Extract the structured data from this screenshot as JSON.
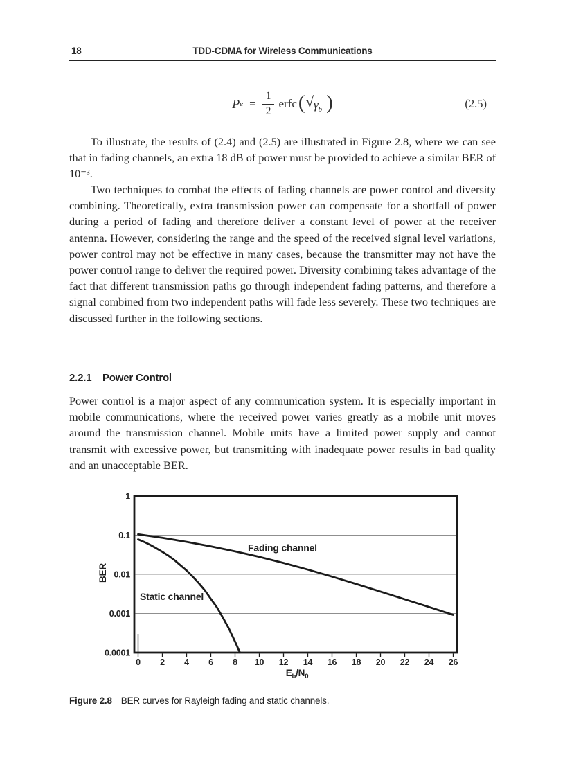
{
  "header": {
    "page_number": "18",
    "running_title": "TDD-CDMA for Wireless Communications"
  },
  "equation": {
    "lhs_base": "P",
    "lhs_sub": "e",
    "relation": "=",
    "numerator": "1",
    "denominator": "2",
    "function": "erfc",
    "open_paren": "(",
    "radical": "√",
    "radicand_base": "γ",
    "radicand_sub": "b",
    "close_paren": ")",
    "number": "(2.5)"
  },
  "paragraphs": {
    "p1": "To illustrate, the results of (2.4) and (2.5) are illustrated in Figure 2.8, where we can see that in fading channels, an extra 18 dB of power must be provided to achieve a similar BER of 10⁻³.",
    "p2": "Two techniques to combat the effects of fading channels are power control and diversity combining. Theoretically, extra transmission power can compensate for a shortfall of power during a period of fading and therefore deliver a constant level of power at the receiver antenna. However, considering the range and the speed of the received signal level variations, power control may not be effective in many cases, because the transmitter may not have the power control range to deliver the required power. Diversity combining takes advantage of the fact that different transmission paths go through independent fading patterns, and therefore a signal combined from two independent paths will fade less severely. These two techniques are discussed further in the following sections.",
    "p3": "Power control is a major aspect of any communication system. It is especially important in mobile communications, where the received power varies greatly as a mobile unit moves around the transmission channel. Mobile units have a limited power supply and cannot transmit with excessive power, but transmitting with inadequate power results in bad quality and an unacceptable BER."
  },
  "section_heading": {
    "number": "2.2.1",
    "title": "Power Control"
  },
  "figure": {
    "caption_label": "Figure 2.8",
    "caption_text": "BER curves for Rayleigh fading and static channels."
  },
  "chart_data": {
    "type": "line",
    "title": "",
    "xlabel": "Eb/N0",
    "xlabel_parts": {
      "base1": "E",
      "sub1": "b",
      "base2": "/N",
      "sub2": "0"
    },
    "ylabel": "BER",
    "xlim": [
      0,
      26.6
    ],
    "ylim": [
      0.0001,
      1
    ],
    "y_scale": "log",
    "grid": "horizontal",
    "x_ticks": [
      0,
      2,
      4,
      6,
      8,
      10,
      12,
      14,
      16,
      18,
      20,
      22,
      24,
      26
    ],
    "y_ticks": [
      {
        "label": "1",
        "value": 1
      },
      {
        "label": "0.1",
        "value": 0.1
      },
      {
        "label": "0.01",
        "value": 0.01
      },
      {
        "label": "0.001",
        "value": 0.001
      },
      {
        "label": "0.0001",
        "value": 0.0001
      }
    ],
    "y_gridlines": [
      0.1,
      0.01,
      0.001
    ],
    "line_color": "#1a1a1a",
    "series": [
      {
        "name": "Fading channel",
        "x": [
          0,
          2,
          4,
          6,
          8,
          10,
          12,
          14,
          16,
          18,
          20,
          22,
          24,
          26
        ],
        "y": [
          0.105,
          0.0855,
          0.0675,
          0.0518,
          0.0386,
          0.0279,
          0.0195,
          0.0132,
          0.00873,
          0.00566,
          0.00362,
          0.0023,
          0.00146,
          0.00092
        ]
      },
      {
        "name": "Static channel",
        "x": [
          0,
          0.5,
          1,
          1.5,
          2,
          2.5,
          3,
          3.5,
          4,
          4.5,
          5,
          5.5,
          6,
          6.5,
          7,
          7.5,
          8,
          8.4
        ],
        "y": [
          0.078,
          0.067,
          0.0566,
          0.0463,
          0.0374,
          0.0299,
          0.0231,
          0.0169,
          0.0125,
          0.00875,
          0.00595,
          0.00392,
          0.00236,
          0.00143,
          0.00078,
          0.000405,
          0.000191,
          0.0001
        ]
      }
    ]
  }
}
